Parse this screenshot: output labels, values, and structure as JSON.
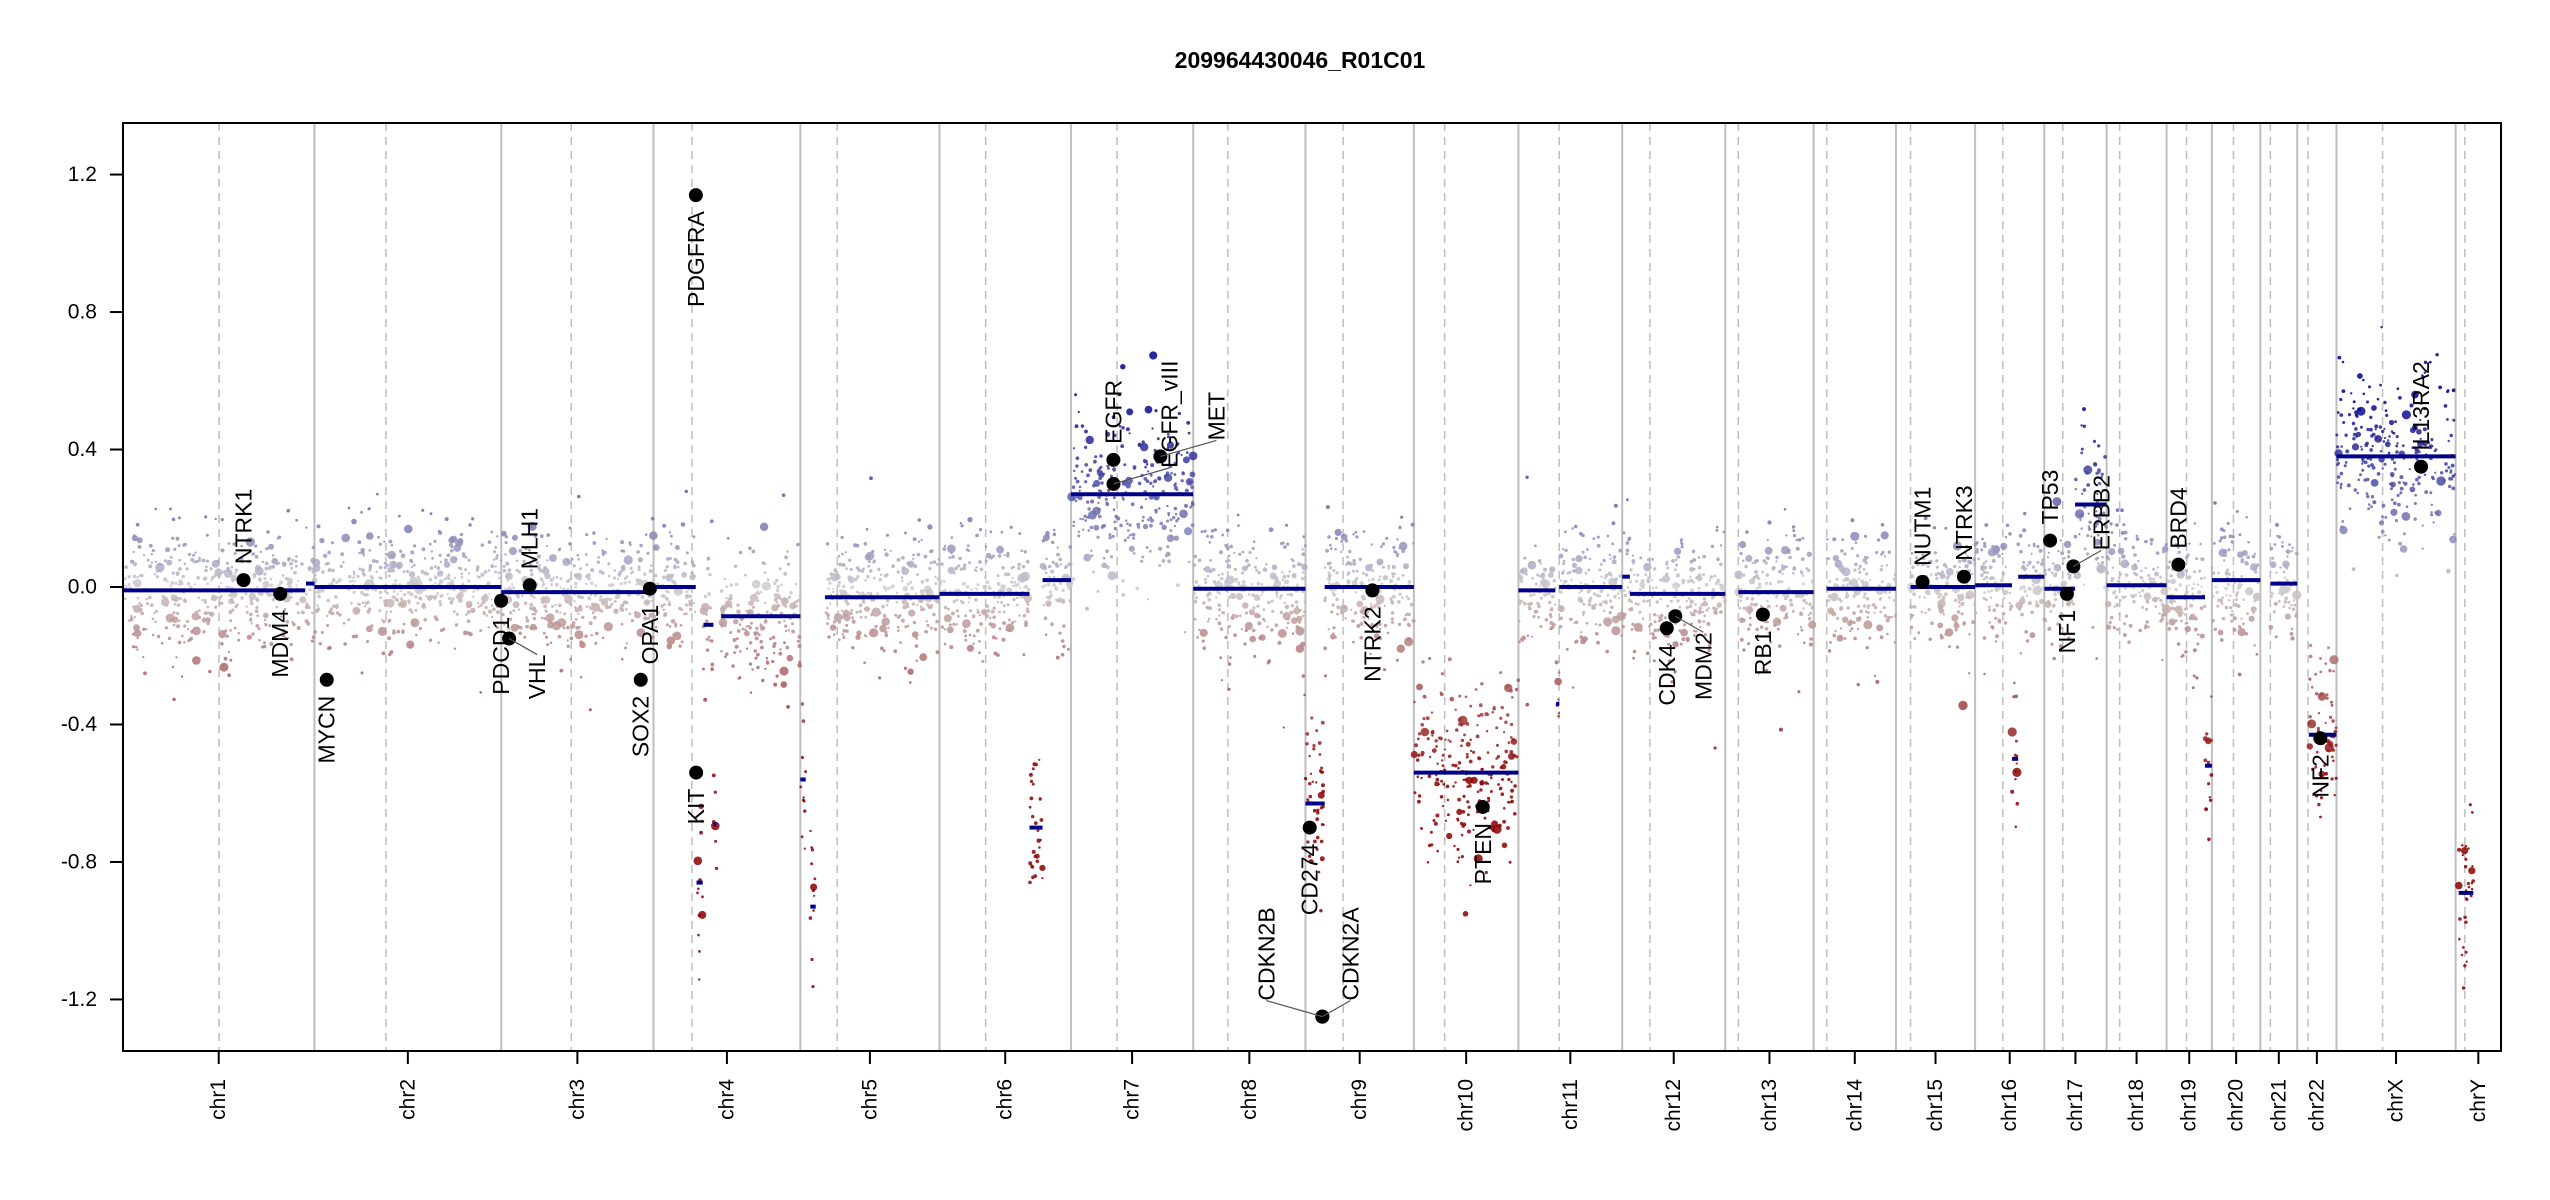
{
  "chart_data": {
    "type": "scatter",
    "title": "209964430046_R01C01",
    "xlabel": "",
    "ylabel": "",
    "ylim": [
      -1.35,
      1.35
    ],
    "yticks": [
      "-1.2",
      "-0.8",
      "-0.4",
      "0.0",
      "0.4",
      "0.8",
      "1.2"
    ],
    "ytick_values": [
      -1.2,
      -0.8,
      -0.4,
      0.0,
      0.4,
      0.8,
      1.2
    ],
    "grid": false,
    "colors": {
      "gain": "#00008b",
      "loss": "#8b0000",
      "neutral": "#d0d0d0",
      "segment": "#00008b",
      "gene": "#000000",
      "boundary": "#bebebe"
    },
    "chromosomes": [
      {
        "name": "chr1",
        "length": 249,
        "centromere": 125
      },
      {
        "name": "chr2",
        "length": 243,
        "centromere": 93
      },
      {
        "name": "chr3",
        "length": 198,
        "centromere": 91
      },
      {
        "name": "chr4",
        "length": 191,
        "centromere": 50
      },
      {
        "name": "chr5",
        "length": 181,
        "centromere": 48
      },
      {
        "name": "chr6",
        "length": 171,
        "centromere": 60
      },
      {
        "name": "chr7",
        "length": 159,
        "centromere": 60
      },
      {
        "name": "chr8",
        "length": 146,
        "centromere": 45
      },
      {
        "name": "chr9",
        "length": 141,
        "centromere": 49
      },
      {
        "name": "chr10",
        "length": 136,
        "centromere": 40
      },
      {
        "name": "chr11",
        "length": 135,
        "centromere": 53
      },
      {
        "name": "chr12",
        "length": 134,
        "centromere": 36
      },
      {
        "name": "chr13",
        "length": 115,
        "centromere": 17
      },
      {
        "name": "chr14",
        "length": 107,
        "centromere": 17
      },
      {
        "name": "chr15",
        "length": 103,
        "centromere": 19
      },
      {
        "name": "chr16",
        "length": 90,
        "centromere": 36
      },
      {
        "name": "chr17",
        "length": 81,
        "centromere": 24
      },
      {
        "name": "chr18",
        "length": 78,
        "centromere": 17
      },
      {
        "name": "chr19",
        "length": 59,
        "centromere": 26
      },
      {
        "name": "chr20",
        "length": 63,
        "centromere": 28
      },
      {
        "name": "chr21",
        "length": 48,
        "centromere": 13
      },
      {
        "name": "chr22",
        "length": 51,
        "centromere": 14
      },
      {
        "name": "chrX",
        "length": 155,
        "centromere": 60
      },
      {
        "name": "chrY",
        "length": 59,
        "centromere": 12
      }
    ],
    "segments": [
      {
        "chr": "chr1",
        "start": 0,
        "end": 237,
        "value": -0.01
      },
      {
        "chr": "chr1",
        "start": 238,
        "end": 249,
        "value": 0.01
      },
      {
        "chr": "chr2",
        "start": 0,
        "end": 243,
        "value": 0.0
      },
      {
        "chr": "chr3",
        "start": 0,
        "end": 198,
        "value": -0.015
      },
      {
        "chr": "chr4",
        "start": 0,
        "end": 55,
        "value": 0.0
      },
      {
        "chr": "chr4",
        "start": 56,
        "end": 64,
        "value": -0.86
      },
      {
        "chr": "chr4",
        "start": 65,
        "end": 78,
        "value": -0.11
      },
      {
        "chr": "chr4",
        "start": 78,
        "end": 82,
        "value": -0.69
      },
      {
        "chr": "chr4",
        "start": 88,
        "end": 191,
        "value": -0.085
      },
      {
        "chr": "chr5",
        "start": 0,
        "end": 7,
        "value": -0.56
      },
      {
        "chr": "chr5",
        "start": 13,
        "end": 20,
        "value": -0.93
      },
      {
        "chr": "chr5",
        "start": 32,
        "end": 181,
        "value": -0.03
      },
      {
        "chr": "chr6",
        "start": 0,
        "end": 117,
        "value": -0.02
      },
      {
        "chr": "chr6",
        "start": 117,
        "end": 134,
        "value": -0.7
      },
      {
        "chr": "chr6",
        "start": 134,
        "end": 171,
        "value": 0.02
      },
      {
        "chr": "chr7",
        "start": 0,
        "end": 159,
        "value": 0.27
      },
      {
        "chr": "chr8",
        "start": 0,
        "end": 146,
        "value": -0.005
      },
      {
        "chr": "chr9",
        "start": 0,
        "end": 25,
        "value": -0.63
      },
      {
        "chr": "chr9",
        "start": 25,
        "end": 141,
        "value": 0.0
      },
      {
        "chr": "chr10",
        "start": 0,
        "end": 136,
        "value": -0.54
      },
      {
        "chr": "chr11",
        "start": 0,
        "end": 48,
        "value": -0.01
      },
      {
        "chr": "chr11",
        "start": 49,
        "end": 53,
        "value": -0.34
      },
      {
        "chr": "chr11",
        "start": 53,
        "end": 135,
        "value": 0.0
      },
      {
        "chr": "chr12",
        "start": 0,
        "end": 10,
        "value": 0.03
      },
      {
        "chr": "chr12",
        "start": 10,
        "end": 134,
        "value": -0.02
      },
      {
        "chr": "chr13",
        "start": 17,
        "end": 115,
        "value": -0.015
      },
      {
        "chr": "chr14",
        "start": 17,
        "end": 107,
        "value": -0.005
      },
      {
        "chr": "chr15",
        "start": 19,
        "end": 103,
        "value": 0.0
      },
      {
        "chr": "chr16",
        "start": 0,
        "end": 48,
        "value": 0.005
      },
      {
        "chr": "chr16",
        "start": 48,
        "end": 56,
        "value": -0.5
      },
      {
        "chr": "chr16",
        "start": 56,
        "end": 90,
        "value": 0.03
      },
      {
        "chr": "chr17",
        "start": 0,
        "end": 40,
        "value": -0.005
      },
      {
        "chr": "chr17",
        "start": 40,
        "end": 81,
        "value": 0.24
      },
      {
        "chr": "chr18",
        "start": 0,
        "end": 78,
        "value": 0.005
      },
      {
        "chr": "chr19",
        "start": 0,
        "end": 50,
        "value": -0.03
      },
      {
        "chr": "chr19",
        "start": 50,
        "end": 59,
        "value": -0.52
      },
      {
        "chr": "chr20",
        "start": 0,
        "end": 63,
        "value": 0.02
      },
      {
        "chr": "chr21",
        "start": 13,
        "end": 48,
        "value": 0.01
      },
      {
        "chr": "chr22",
        "start": 15,
        "end": 51,
        "value": -0.43
      },
      {
        "chr": "chrX",
        "start": 0,
        "end": 155,
        "value": 0.38
      },
      {
        "chr": "chrY",
        "start": 4,
        "end": 23,
        "value": -0.89
      }
    ],
    "genes": [
      {
        "name": "NTRK1",
        "chr": "chr1",
        "pos": 156.8,
        "value": 0.02,
        "label_side": "above"
      },
      {
        "name": "MDM4",
        "chr": "chr1",
        "pos": 204.5,
        "value": -0.02,
        "label_side": "below"
      },
      {
        "name": "MYCN",
        "chr": "chr2",
        "pos": 16.0,
        "value": -0.27,
        "label_side": "below"
      },
      {
        "name": "PDCD1",
        "chr": "chr2",
        "pos": 242.8,
        "value": -0.04,
        "label_side": "below"
      },
      {
        "name": "VHL",
        "chr": "chr3",
        "pos": 10.2,
        "value": -0.15,
        "label_side": "below"
      },
      {
        "name": "MLH1",
        "chr": "chr3",
        "pos": 37.0,
        "value": 0.005,
        "label_side": "above"
      },
      {
        "name": "SOX2",
        "chr": "chr3",
        "pos": 181.4,
        "value": -0.27,
        "label_side": "below"
      },
      {
        "name": "OPA1",
        "chr": "chr3",
        "pos": 193.3,
        "value": -0.005,
        "label_side": "below"
      },
      {
        "name": "PDGFRA",
        "chr": "chr4",
        "pos": 55.1,
        "value": 1.14,
        "label_side": "below"
      },
      {
        "name": "KIT",
        "chr": "chr4",
        "pos": 55.5,
        "value": -0.54,
        "label_side": "below"
      },
      {
        "name": "EGFR",
        "chr": "chr7",
        "pos": 55.2,
        "value": 0.37,
        "label_side": "above"
      },
      {
        "name": "EGFR_vIII",
        "chr": "chr7",
        "pos": 55.3,
        "value": 0.3,
        "label_side": "above"
      },
      {
        "name": "MET",
        "chr": "chr7",
        "pos": 116.3,
        "value": 0.38,
        "label_side": "above"
      },
      {
        "name": "CD274",
        "chr": "chr9",
        "pos": 5.5,
        "value": -0.7,
        "label_side": "below"
      },
      {
        "name": "CDKN2A",
        "chr": "chr9",
        "pos": 21.9,
        "value": -1.25,
        "label_side": "above"
      },
      {
        "name": "CDKN2B",
        "chr": "chr9",
        "pos": 22.0,
        "value": -1.25,
        "label_side": "above"
      },
      {
        "name": "NTRK2",
        "chr": "chr9",
        "pos": 87.0,
        "value": -0.01,
        "label_side": "below"
      },
      {
        "name": "PTEN",
        "chr": "chr10",
        "pos": 89.6,
        "value": -0.64,
        "label_side": "below"
      },
      {
        "name": "CDK4",
        "chr": "chr12",
        "pos": 58.0,
        "value": -0.12,
        "label_side": "below"
      },
      {
        "name": "MDM2",
        "chr": "chr12",
        "pos": 69.0,
        "value": -0.085,
        "label_side": "below"
      },
      {
        "name": "RB1",
        "chr": "chr13",
        "pos": 48.9,
        "value": -0.08,
        "label_side": "below"
      },
      {
        "name": "NUTM1",
        "chr": "chr15",
        "pos": 34.6,
        "value": 0.015,
        "label_side": "above"
      },
      {
        "name": "NTRK3",
        "chr": "chr15",
        "pos": 88.5,
        "value": 0.03,
        "label_side": "above"
      },
      {
        "name": "TP53",
        "chr": "chr17",
        "pos": 7.5,
        "value": 0.135,
        "label_side": "above"
      },
      {
        "name": "NF1",
        "chr": "chr17",
        "pos": 29.4,
        "value": -0.02,
        "label_side": "below"
      },
      {
        "name": "ERBB2",
        "chr": "chr17",
        "pos": 37.8,
        "value": 0.06,
        "label_side": "above"
      },
      {
        "name": "BRD4",
        "chr": "chr19",
        "pos": 15.4,
        "value": 0.065,
        "label_side": "above"
      },
      {
        "name": "NF2",
        "chr": "chr22",
        "pos": 30.0,
        "value": -0.44,
        "label_side": "below"
      },
      {
        "name": "IL13RA2",
        "chr": "chrX",
        "pos": 110.0,
        "value": 0.35,
        "label_side": "above"
      }
    ]
  }
}
